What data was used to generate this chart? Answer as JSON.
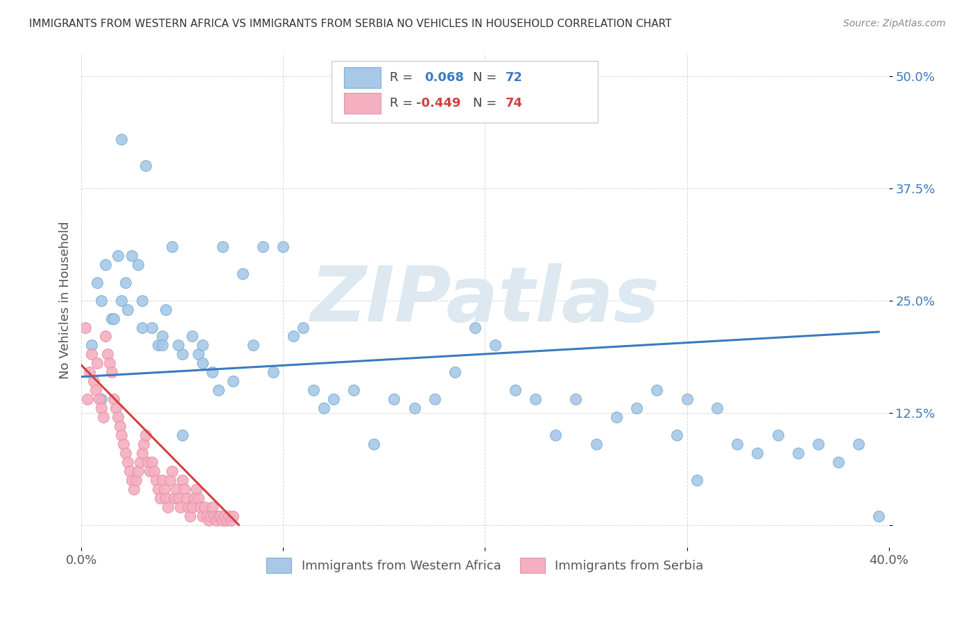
{
  "title": "IMMIGRANTS FROM WESTERN AFRICA VS IMMIGRANTS FROM SERBIA NO VEHICLES IN HOUSEHOLD CORRELATION CHART",
  "source": "Source: ZipAtlas.com",
  "ylabel": "No Vehicles in Household",
  "legend_label_blue": "Immigrants from Western Africa",
  "legend_label_pink": "Immigrants from Serbia",
  "blue_color": "#a8c8e8",
  "pink_color": "#f4b0c0",
  "blue_edge_color": "#7aafd4",
  "pink_edge_color": "#e890a8",
  "blue_line_color": "#3a7abf",
  "pink_line_color": "#d04040",
  "watermark_color": "#dde8f0",
  "xlim": [
    0.0,
    0.4
  ],
  "ylim": [
    -0.025,
    0.525
  ],
  "blue_scatter_x": [
    0.005,
    0.02,
    0.032,
    0.012,
    0.018,
    0.025,
    0.038,
    0.05,
    0.008,
    0.015,
    0.022,
    0.028,
    0.035,
    0.042,
    0.055,
    0.065,
    0.01,
    0.016,
    0.023,
    0.03,
    0.04,
    0.048,
    0.058,
    0.068,
    0.075,
    0.085,
    0.095,
    0.105,
    0.115,
    0.125,
    0.135,
    0.145,
    0.155,
    0.165,
    0.175,
    0.185,
    0.195,
    0.205,
    0.215,
    0.225,
    0.235,
    0.245,
    0.255,
    0.265,
    0.275,
    0.285,
    0.295,
    0.305,
    0.315,
    0.325,
    0.335,
    0.345,
    0.355,
    0.365,
    0.375,
    0.385,
    0.395,
    0.01,
    0.02,
    0.03,
    0.04,
    0.05,
    0.06,
    0.07,
    0.08,
    0.09,
    0.1,
    0.11,
    0.12,
    0.045,
    0.06,
    0.3
  ],
  "blue_scatter_y": [
    0.2,
    0.43,
    0.4,
    0.29,
    0.3,
    0.3,
    0.2,
    0.19,
    0.27,
    0.23,
    0.27,
    0.29,
    0.22,
    0.24,
    0.21,
    0.17,
    0.25,
    0.23,
    0.24,
    0.22,
    0.21,
    0.2,
    0.19,
    0.15,
    0.16,
    0.2,
    0.17,
    0.21,
    0.15,
    0.14,
    0.15,
    0.09,
    0.14,
    0.13,
    0.14,
    0.17,
    0.22,
    0.2,
    0.15,
    0.14,
    0.1,
    0.14,
    0.09,
    0.12,
    0.13,
    0.15,
    0.1,
    0.05,
    0.13,
    0.09,
    0.08,
    0.1,
    0.08,
    0.09,
    0.07,
    0.09,
    0.01,
    0.14,
    0.25,
    0.25,
    0.2,
    0.1,
    0.2,
    0.31,
    0.28,
    0.31,
    0.31,
    0.22,
    0.13,
    0.31,
    0.18,
    0.14
  ],
  "pink_scatter_x": [
    0.002,
    0.003,
    0.004,
    0.005,
    0.006,
    0.007,
    0.008,
    0.009,
    0.01,
    0.011,
    0.012,
    0.013,
    0.014,
    0.015,
    0.016,
    0.017,
    0.018,
    0.019,
    0.02,
    0.021,
    0.022,
    0.023,
    0.024,
    0.025,
    0.026,
    0.027,
    0.028,
    0.029,
    0.03,
    0.031,
    0.032,
    0.033,
    0.034,
    0.035,
    0.036,
    0.037,
    0.038,
    0.039,
    0.04,
    0.041,
    0.042,
    0.043,
    0.044,
    0.045,
    0.046,
    0.047,
    0.048,
    0.049,
    0.05,
    0.051,
    0.052,
    0.053,
    0.054,
    0.055,
    0.056,
    0.057,
    0.058,
    0.059,
    0.06,
    0.061,
    0.062,
    0.063,
    0.064,
    0.065,
    0.066,
    0.067,
    0.068,
    0.069,
    0.07,
    0.071,
    0.072,
    0.073,
    0.074,
    0.075
  ],
  "pink_scatter_y": [
    0.22,
    0.14,
    0.17,
    0.19,
    0.16,
    0.15,
    0.18,
    0.14,
    0.13,
    0.12,
    0.21,
    0.19,
    0.18,
    0.17,
    0.14,
    0.13,
    0.12,
    0.11,
    0.1,
    0.09,
    0.08,
    0.07,
    0.06,
    0.05,
    0.04,
    0.05,
    0.06,
    0.07,
    0.08,
    0.09,
    0.1,
    0.07,
    0.06,
    0.07,
    0.06,
    0.05,
    0.04,
    0.03,
    0.05,
    0.04,
    0.03,
    0.02,
    0.05,
    0.06,
    0.03,
    0.04,
    0.03,
    0.02,
    0.05,
    0.04,
    0.03,
    0.02,
    0.01,
    0.02,
    0.03,
    0.04,
    0.03,
    0.02,
    0.01,
    0.02,
    0.01,
    0.005,
    0.01,
    0.02,
    0.01,
    0.005,
    0.01,
    0.01,
    0.005,
    0.01,
    0.005,
    0.01,
    0.005,
    0.01
  ],
  "blue_line_x": [
    0.0,
    0.395
  ],
  "blue_line_y": [
    0.165,
    0.215
  ],
  "pink_line_x": [
    0.0,
    0.078
  ],
  "pink_line_y": [
    0.178,
    0.0
  ]
}
